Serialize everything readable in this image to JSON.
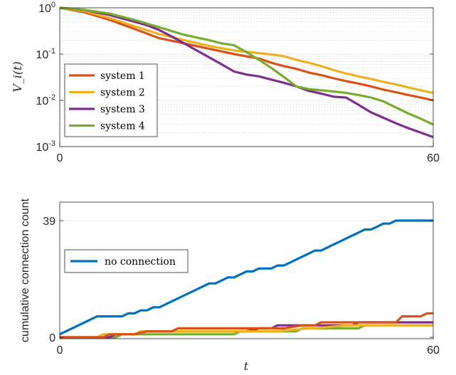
{
  "chart_data": [
    {
      "type": "line",
      "title": "",
      "xlabel": "",
      "ylabel": "V_i(t)",
      "yscale": "log",
      "xlim": [
        0,
        60
      ],
      "ylim": [
        0.001,
        1
      ],
      "xticks": [
        "0",
        "60"
      ],
      "yticks": [
        {
          "base": "10",
          "exp": "0",
          "value": 1
        },
        {
          "base": "10",
          "exp": "-1",
          "value": 0.1
        },
        {
          "base": "10",
          "exp": "-2",
          "value": 0.01
        },
        {
          "base": "10",
          "exp": "-3",
          "value": 0.001
        }
      ],
      "minor_grid": true,
      "legend_position": "lower-left",
      "series": [
        {
          "name": "system 1",
          "color": "#D95319",
          "x": [
            0,
            4,
            8,
            12,
            16,
            20,
            24,
            28,
            32,
            34,
            36,
            38,
            40,
            42,
            44,
            46,
            48,
            50,
            52,
            54,
            56,
            58,
            60
          ],
          "y": [
            1.0,
            0.8,
            0.55,
            0.35,
            0.22,
            0.17,
            0.13,
            0.1,
            0.08,
            0.065,
            0.055,
            0.048,
            0.04,
            0.035,
            0.03,
            0.026,
            0.023,
            0.02,
            0.017,
            0.015,
            0.013,
            0.0115,
            0.01
          ]
        },
        {
          "name": "system 2",
          "color": "#EDB120",
          "x": [
            0,
            4,
            8,
            12,
            16,
            20,
            24,
            28,
            32,
            34,
            36,
            38,
            40,
            42,
            44,
            46,
            48,
            50,
            52,
            54,
            56,
            58,
            60
          ],
          "y": [
            1.0,
            0.85,
            0.6,
            0.4,
            0.27,
            0.2,
            0.15,
            0.12,
            0.105,
            0.098,
            0.09,
            0.075,
            0.065,
            0.055,
            0.045,
            0.038,
            0.033,
            0.029,
            0.025,
            0.022,
            0.019,
            0.0165,
            0.0145
          ]
        },
        {
          "name": "system 3",
          "color": "#7E2F8E",
          "x": [
            0,
            4,
            8,
            12,
            14,
            16,
            18,
            20,
            22,
            24,
            26,
            28,
            30,
            32,
            34,
            36,
            38,
            40,
            42,
            44,
            46,
            48,
            50,
            52,
            54,
            56,
            58,
            60
          ],
          "y": [
            1.0,
            0.9,
            0.7,
            0.5,
            0.42,
            0.33,
            0.24,
            0.17,
            0.12,
            0.085,
            0.06,
            0.042,
            0.036,
            0.033,
            0.028,
            0.024,
            0.02,
            0.016,
            0.014,
            0.012,
            0.0115,
            0.008,
            0.0055,
            0.0042,
            0.0032,
            0.0025,
            0.002,
            0.0016
          ]
        },
        {
          "name": "system 4",
          "color": "#77AC30",
          "x": [
            0,
            4,
            8,
            12,
            16,
            20,
            24,
            26,
            28,
            30,
            32,
            34,
            36,
            38,
            40,
            42,
            44,
            46,
            48,
            50,
            52,
            54,
            56,
            58,
            60
          ],
          "y": [
            1.0,
            0.9,
            0.75,
            0.55,
            0.38,
            0.26,
            0.2,
            0.17,
            0.155,
            0.11,
            0.075,
            0.05,
            0.032,
            0.02,
            0.0175,
            0.0165,
            0.0155,
            0.0145,
            0.013,
            0.0115,
            0.0095,
            0.007,
            0.0052,
            0.004,
            0.003
          ]
        }
      ]
    },
    {
      "type": "line",
      "title": "",
      "xlabel": "t",
      "ylabel": "cumulative connection count",
      "xlim": [
        0,
        60
      ],
      "ylim": [
        0,
        39
      ],
      "xticks": [
        "0",
        "60"
      ],
      "yticks": [
        "0",
        "39"
      ],
      "legend_position": "left",
      "series": [
        {
          "name": "no connection",
          "color": "#0072BD",
          "x": [
            0,
            6,
            10,
            11,
            12,
            13,
            14,
            15,
            16,
            17,
            18,
            19,
            20,
            21,
            22,
            23,
            24,
            25,
            26,
            27,
            28,
            29,
            30,
            31,
            32,
            33,
            34,
            35,
            36,
            37,
            38,
            39,
            40,
            41,
            42,
            43,
            44,
            45,
            46,
            47,
            48,
            49,
            50,
            51,
            52,
            53,
            54,
            55,
            56,
            57,
            58,
            59,
            60
          ],
          "y": [
            1,
            7,
            7,
            8,
            8,
            9,
            9,
            10,
            10,
            11,
            12,
            13,
            14,
            15,
            16,
            17,
            18,
            18,
            19,
            20,
            20,
            21,
            22,
            22,
            23,
            23,
            23,
            24,
            24,
            25,
            26,
            27,
            28,
            29,
            29,
            30,
            31,
            32,
            33,
            34,
            35,
            36,
            36,
            37,
            38,
            38,
            39,
            39,
            39,
            39,
            39,
            39,
            39
          ]
        },
        {
          "color": "#D95319",
          "x": [
            0,
            7,
            8,
            9,
            12,
            14,
            16,
            18,
            19,
            30,
            31,
            35,
            36,
            39,
            40,
            41,
            42,
            54,
            55,
            58,
            59,
            60
          ],
          "y": [
            0,
            0,
            1,
            1,
            1,
            2,
            2,
            2,
            3,
            3,
            3,
            3,
            3,
            4,
            4,
            4,
            5,
            5,
            7,
            7,
            8,
            8
          ]
        },
        {
          "color": "#EDB120",
          "x": [
            0,
            6,
            7,
            8,
            9,
            12,
            13,
            16,
            17,
            30,
            31,
            34,
            35,
            40,
            41,
            46,
            47,
            48,
            49,
            60
          ],
          "y": [
            0,
            0,
            1,
            1,
            1,
            1,
            2,
            2,
            2,
            2,
            2,
            2,
            2,
            3,
            3,
            4,
            4,
            4,
            4,
            4
          ]
        },
        {
          "color": "#7E2F8E",
          "x": [
            0,
            8,
            9,
            11,
            12,
            14,
            15,
            17,
            18,
            29,
            30,
            32,
            33,
            34,
            35,
            46,
            47,
            48,
            60
          ],
          "y": [
            0,
            0,
            1,
            1,
            1,
            2,
            2,
            2,
            2,
            2,
            2,
            3,
            3,
            3,
            4,
            4,
            4,
            5,
            5
          ]
        },
        {
          "color": "#77AC30",
          "x": [
            0,
            9,
            10,
            11,
            12,
            17,
            18,
            28,
            29,
            32,
            33,
            38,
            39,
            40,
            41,
            48,
            49,
            60
          ],
          "y": [
            0,
            0,
            1,
            1,
            1,
            1,
            1,
            1,
            2,
            2,
            2,
            2,
            3,
            3,
            3,
            3,
            4,
            4
          ]
        }
      ]
    }
  ]
}
